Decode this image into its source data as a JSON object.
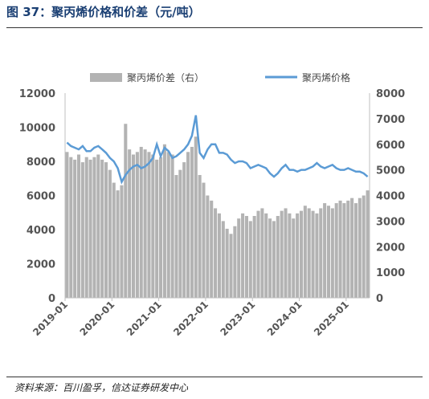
{
  "figure": {
    "title": "图 37：聚丙烯价格和价差（元/吨）",
    "source": "资料来源：百川盈孚，信达证券研发中心"
  },
  "colors": {
    "price_line": "#5b9bd5",
    "spread_bar": "#b3b3b3",
    "title": "#1a3f73"
  },
  "chart_data": {
    "type": "line+bar",
    "title": "",
    "legend": {
      "placement": "top",
      "entries": [
        "聚丙烯价差（右）",
        "聚丙烯价格"
      ]
    },
    "y_left": {
      "range": [
        0,
        12000
      ],
      "ticks": [
        0,
        2000,
        4000,
        6000,
        8000,
        10000,
        12000
      ],
      "tick_labels": [
        "0",
        "2000",
        "4000",
        "6000",
        "8000",
        "10000",
        "12000"
      ]
    },
    "y_right": {
      "range": [
        0,
        8000
      ],
      "ticks": [
        0,
        1000,
        2000,
        3000,
        4000,
        5000,
        6000,
        7000,
        8000
      ],
      "tick_labels": [
        "0",
        "1000",
        "2000",
        "3000",
        "4000",
        "5000",
        "6000",
        "7000",
        "8000"
      ]
    },
    "x_axis": {
      "range": [
        "2019-01",
        "2025-06"
      ],
      "ticks": [
        "2019-01",
        "2020-01",
        "2021-01",
        "2022-01",
        "2023-01",
        "2024-01",
        "2025-01"
      ],
      "tick_labels": [
        "2019-01",
        "2020-01",
        "2021-01",
        "2022-01",
        "2023-01",
        "2024-01",
        "2025-01"
      ]
    },
    "series": [
      {
        "name": "聚丙烯价差（右）",
        "kind": "bar",
        "axis": "right",
        "x": [
          "2019-01",
          "2019-02",
          "2019-03",
          "2019-04",
          "2019-05",
          "2019-06",
          "2019-07",
          "2019-08",
          "2019-09",
          "2019-10",
          "2019-11",
          "2019-12",
          "2020-01",
          "2020-02",
          "2020-03",
          "2020-04",
          "2020-05",
          "2020-06",
          "2020-07",
          "2020-08",
          "2020-09",
          "2020-10",
          "2020-11",
          "2020-12",
          "2021-01",
          "2021-02",
          "2021-03",
          "2021-04",
          "2021-05",
          "2021-06",
          "2021-07",
          "2021-08",
          "2021-09",
          "2021-10",
          "2021-11",
          "2021-12",
          "2022-01",
          "2022-02",
          "2022-03",
          "2022-04",
          "2022-05",
          "2022-06",
          "2022-07",
          "2022-08",
          "2022-09",
          "2022-10",
          "2022-11",
          "2022-12",
          "2023-01",
          "2023-02",
          "2023-03",
          "2023-04",
          "2023-05",
          "2023-06",
          "2023-07",
          "2023-08",
          "2023-09",
          "2023-10",
          "2023-11",
          "2023-12",
          "2024-01",
          "2024-02",
          "2024-03",
          "2024-04",
          "2024-05",
          "2024-06",
          "2024-07",
          "2024-08",
          "2024-09",
          "2024-10",
          "2024-11",
          "2024-12",
          "2025-01",
          "2025-02",
          "2025-03",
          "2025-04",
          "2025-05",
          "2025-06"
        ],
        "values": [
          5700,
          5500,
          5400,
          5600,
          5300,
          5500,
          5400,
          5500,
          5600,
          5400,
          5300,
          5000,
          4500,
          4200,
          4400,
          6800,
          5800,
          5600,
          5700,
          5900,
          5800,
          5700,
          5600,
          5400,
          5500,
          6000,
          5700,
          5600,
          4800,
          5000,
          5300,
          5700,
          5900,
          6300,
          4800,
          4500,
          4000,
          3800,
          3500,
          3300,
          3000,
          2700,
          2500,
          2800,
          3100,
          3300,
          3200,
          3000,
          3200,
          3400,
          3500,
          3300,
          3100,
          3000,
          3200,
          3400,
          3500,
          3300,
          3100,
          3300,
          3400,
          3600,
          3500,
          3400,
          3300,
          3500,
          3700,
          3600,
          3500,
          3700,
          3800,
          3700,
          3800,
          3900,
          3700,
          3900,
          4000,
          4200
        ]
      },
      {
        "name": "聚丙烯价格",
        "kind": "line",
        "axis": "left",
        "x": [
          "2019-01",
          "2019-02",
          "2019-03",
          "2019-04",
          "2019-05",
          "2019-06",
          "2019-07",
          "2019-08",
          "2019-09",
          "2019-10",
          "2019-11",
          "2019-12",
          "2020-01",
          "2020-02",
          "2020-03",
          "2020-04",
          "2020-05",
          "2020-06",
          "2020-07",
          "2020-08",
          "2020-09",
          "2020-10",
          "2020-11",
          "2020-12",
          "2021-01",
          "2021-02",
          "2021-03",
          "2021-04",
          "2021-05",
          "2021-06",
          "2021-07",
          "2021-08",
          "2021-09",
          "2021-10",
          "2021-11",
          "2021-12",
          "2022-01",
          "2022-02",
          "2022-03",
          "2022-04",
          "2022-05",
          "2022-06",
          "2022-07",
          "2022-08",
          "2022-09",
          "2022-10",
          "2022-11",
          "2022-12",
          "2023-01",
          "2023-02",
          "2023-03",
          "2023-04",
          "2023-05",
          "2023-06",
          "2023-07",
          "2023-08",
          "2023-09",
          "2023-10",
          "2023-11",
          "2023-12",
          "2024-01",
          "2024-02",
          "2024-03",
          "2024-04",
          "2024-05",
          "2024-06",
          "2024-07",
          "2024-08",
          "2024-09",
          "2024-10",
          "2024-11",
          "2024-12",
          "2025-01",
          "2025-02",
          "2025-03",
          "2025-04",
          "2025-05",
          "2025-06"
        ],
        "values": [
          9100,
          8900,
          8800,
          8700,
          8900,
          8600,
          8600,
          8800,
          8900,
          8700,
          8500,
          8200,
          8000,
          7600,
          6800,
          7200,
          7500,
          7700,
          7800,
          7600,
          7700,
          7900,
          8200,
          9000,
          8300,
          8800,
          8600,
          8200,
          8300,
          8500,
          8700,
          9000,
          9500,
          10700,
          8500,
          8200,
          8700,
          9000,
          9000,
          8500,
          8500,
          8400,
          8100,
          7900,
          8000,
          8000,
          7900,
          7600,
          7700,
          7800,
          7700,
          7600,
          7300,
          7100,
          7300,
          7600,
          7800,
          7500,
          7500,
          7400,
          7500,
          7500,
          7600,
          7700,
          7900,
          7700,
          7600,
          7700,
          7800,
          7600,
          7500,
          7500,
          7600,
          7500,
          7400,
          7400,
          7300,
          7100
        ]
      }
    ]
  }
}
